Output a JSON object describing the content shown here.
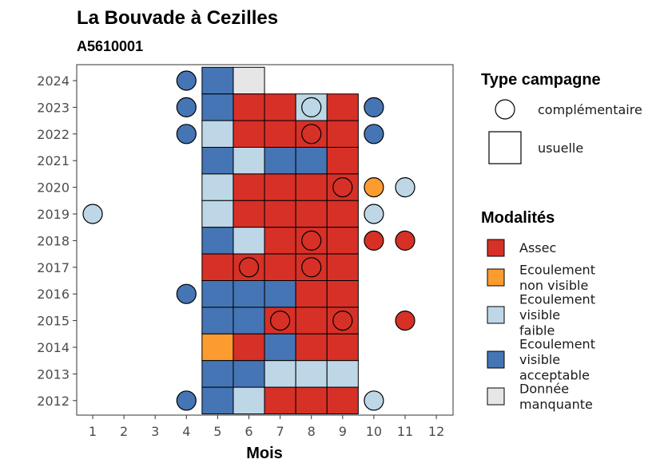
{
  "chart_data": {
    "type": "heatmap",
    "title": "La Bouvade à Cezilles",
    "subtitle": "A5610001",
    "xlabel": "Mois",
    "ylabel": "",
    "x_ticks": [
      "1",
      "2",
      "3",
      "4",
      "5",
      "6",
      "7",
      "8",
      "9",
      "10",
      "11",
      "12"
    ],
    "y_ticks": [
      "2012",
      "2013",
      "2014",
      "2015",
      "2016",
      "2017",
      "2018",
      "2019",
      "2020",
      "2021",
      "2022",
      "2023",
      "2024"
    ],
    "colors": {
      "Assec": "#d73027",
      "Ecoulement non visible": "#fc9b2f",
      "Ecoulement visible faible": "#bdd7e7",
      "Ecoulement visible acceptable": "#4575b4",
      "Donnée manquante": "#e6e6e6"
    },
    "legend_type": {
      "title": "Type campagne",
      "items": [
        "complémentaire",
        "usuelle"
      ]
    },
    "legend_modalites": {
      "title": "Modalités",
      "items": [
        {
          "key": "Assec",
          "lines": [
            "Assec"
          ]
        },
        {
          "key": "Ecoulement non visible",
          "lines": [
            "Ecoulement",
            "non visible"
          ]
        },
        {
          "key": "Ecoulement visible faible",
          "lines": [
            "Ecoulement",
            "visible",
            "faible"
          ]
        },
        {
          "key": "Ecoulement visible acceptable",
          "lines": [
            "Ecoulement",
            "visible",
            "acceptable"
          ]
        },
        {
          "key": "Donnée manquante",
          "lines": [
            "Donnée",
            "manquante"
          ]
        }
      ]
    },
    "usuelle": [
      {
        "year": 2024,
        "month": 5,
        "value": "Ecoulement visible acceptable"
      },
      {
        "year": 2024,
        "month": 6,
        "value": "Donnée manquante"
      },
      {
        "year": 2023,
        "month": 5,
        "value": "Ecoulement visible acceptable"
      },
      {
        "year": 2023,
        "month": 6,
        "value": "Assec"
      },
      {
        "year": 2023,
        "month": 7,
        "value": "Assec"
      },
      {
        "year": 2023,
        "month": 8,
        "value": "Ecoulement visible faible"
      },
      {
        "year": 2023,
        "month": 9,
        "value": "Assec"
      },
      {
        "year": 2022,
        "month": 5,
        "value": "Ecoulement visible faible"
      },
      {
        "year": 2022,
        "month": 6,
        "value": "Assec"
      },
      {
        "year": 2022,
        "month": 7,
        "value": "Assec"
      },
      {
        "year": 2022,
        "month": 8,
        "value": "Assec"
      },
      {
        "year": 2022,
        "month": 9,
        "value": "Assec"
      },
      {
        "year": 2021,
        "month": 5,
        "value": "Ecoulement visible acceptable"
      },
      {
        "year": 2021,
        "month": 6,
        "value": "Ecoulement visible faible"
      },
      {
        "year": 2021,
        "month": 7,
        "value": "Ecoulement visible acceptable"
      },
      {
        "year": 2021,
        "month": 8,
        "value": "Ecoulement visible acceptable"
      },
      {
        "year": 2021,
        "month": 9,
        "value": "Assec"
      },
      {
        "year": 2020,
        "month": 5,
        "value": "Ecoulement visible faible"
      },
      {
        "year": 2020,
        "month": 6,
        "value": "Assec"
      },
      {
        "year": 2020,
        "month": 7,
        "value": "Assec"
      },
      {
        "year": 2020,
        "month": 8,
        "value": "Assec"
      },
      {
        "year": 2020,
        "month": 9,
        "value": "Assec"
      },
      {
        "year": 2019,
        "month": 5,
        "value": "Ecoulement visible faible"
      },
      {
        "year": 2019,
        "month": 6,
        "value": "Assec"
      },
      {
        "year": 2019,
        "month": 7,
        "value": "Assec"
      },
      {
        "year": 2019,
        "month": 8,
        "value": "Assec"
      },
      {
        "year": 2019,
        "month": 9,
        "value": "Assec"
      },
      {
        "year": 2018,
        "month": 5,
        "value": "Ecoulement visible acceptable"
      },
      {
        "year": 2018,
        "month": 6,
        "value": "Ecoulement visible faible"
      },
      {
        "year": 2018,
        "month": 7,
        "value": "Assec"
      },
      {
        "year": 2018,
        "month": 8,
        "value": "Assec"
      },
      {
        "year": 2018,
        "month": 9,
        "value": "Assec"
      },
      {
        "year": 2017,
        "month": 5,
        "value": "Assec"
      },
      {
        "year": 2017,
        "month": 6,
        "value": "Assec"
      },
      {
        "year": 2017,
        "month": 7,
        "value": "Assec"
      },
      {
        "year": 2017,
        "month": 8,
        "value": "Assec"
      },
      {
        "year": 2017,
        "month": 9,
        "value": "Assec"
      },
      {
        "year": 2016,
        "month": 5,
        "value": "Ecoulement visible acceptable"
      },
      {
        "year": 2016,
        "month": 6,
        "value": "Ecoulement visible acceptable"
      },
      {
        "year": 2016,
        "month": 7,
        "value": "Ecoulement visible acceptable"
      },
      {
        "year": 2016,
        "month": 8,
        "value": "Assec"
      },
      {
        "year": 2016,
        "month": 9,
        "value": "Assec"
      },
      {
        "year": 2015,
        "month": 5,
        "value": "Ecoulement visible acceptable"
      },
      {
        "year": 2015,
        "month": 6,
        "value": "Ecoulement visible acceptable"
      },
      {
        "year": 2015,
        "month": 7,
        "value": "Assec"
      },
      {
        "year": 2015,
        "month": 8,
        "value": "Assec"
      },
      {
        "year": 2015,
        "month": 9,
        "value": "Assec"
      },
      {
        "year": 2014,
        "month": 5,
        "value": "Ecoulement non visible"
      },
      {
        "year": 2014,
        "month": 6,
        "value": "Assec"
      },
      {
        "year": 2014,
        "month": 7,
        "value": "Ecoulement visible acceptable"
      },
      {
        "year": 2014,
        "month": 8,
        "value": "Assec"
      },
      {
        "year": 2014,
        "month": 9,
        "value": "Assec"
      },
      {
        "year": 2013,
        "month": 5,
        "value": "Ecoulement visible acceptable"
      },
      {
        "year": 2013,
        "month": 6,
        "value": "Ecoulement visible acceptable"
      },
      {
        "year": 2013,
        "month": 7,
        "value": "Ecoulement visible faible"
      },
      {
        "year": 2013,
        "month": 8,
        "value": "Ecoulement visible faible"
      },
      {
        "year": 2013,
        "month": 9,
        "value": "Ecoulement visible faible"
      },
      {
        "year": 2012,
        "month": 5,
        "value": "Ecoulement visible acceptable"
      },
      {
        "year": 2012,
        "month": 6,
        "value": "Ecoulement visible faible"
      },
      {
        "year": 2012,
        "month": 7,
        "value": "Assec"
      },
      {
        "year": 2012,
        "month": 8,
        "value": "Assec"
      },
      {
        "year": 2012,
        "month": 9,
        "value": "Assec"
      }
    ],
    "complementaire": [
      {
        "year": 2024,
        "month": 4,
        "value": "Ecoulement visible acceptable"
      },
      {
        "year": 2023,
        "month": 4,
        "value": "Ecoulement visible acceptable"
      },
      {
        "year": 2023,
        "month": 8,
        "value": "Ecoulement visible faible"
      },
      {
        "year": 2023,
        "month": 10,
        "value": "Ecoulement visible acceptable"
      },
      {
        "year": 2022,
        "month": 4,
        "value": "Ecoulement visible acceptable"
      },
      {
        "year": 2022,
        "month": 8,
        "value": "Assec"
      },
      {
        "year": 2022,
        "month": 10,
        "value": "Ecoulement visible acceptable"
      },
      {
        "year": 2020,
        "month": 9,
        "value": "Assec"
      },
      {
        "year": 2020,
        "month": 10,
        "value": "Ecoulement non visible"
      },
      {
        "year": 2020,
        "month": 11,
        "value": "Ecoulement visible faible"
      },
      {
        "year": 2019,
        "month": 1,
        "value": "Ecoulement visible faible"
      },
      {
        "year": 2019,
        "month": 10,
        "value": "Ecoulement visible faible"
      },
      {
        "year": 2018,
        "month": 8,
        "value": "Assec"
      },
      {
        "year": 2018,
        "month": 10,
        "value": "Assec"
      },
      {
        "year": 2018,
        "month": 11,
        "value": "Assec"
      },
      {
        "year": 2017,
        "month": 6,
        "value": "Assec"
      },
      {
        "year": 2017,
        "month": 8,
        "value": "Assec"
      },
      {
        "year": 2016,
        "month": 4,
        "value": "Ecoulement visible acceptable"
      },
      {
        "year": 2015,
        "month": 7,
        "value": "Assec"
      },
      {
        "year": 2015,
        "month": 9,
        "value": "Assec"
      },
      {
        "year": 2015,
        "month": 11,
        "value": "Assec"
      },
      {
        "year": 2012,
        "month": 4,
        "value": "Ecoulement visible acceptable"
      },
      {
        "year": 2012,
        "month": 10,
        "value": "Ecoulement visible faible"
      }
    ]
  }
}
